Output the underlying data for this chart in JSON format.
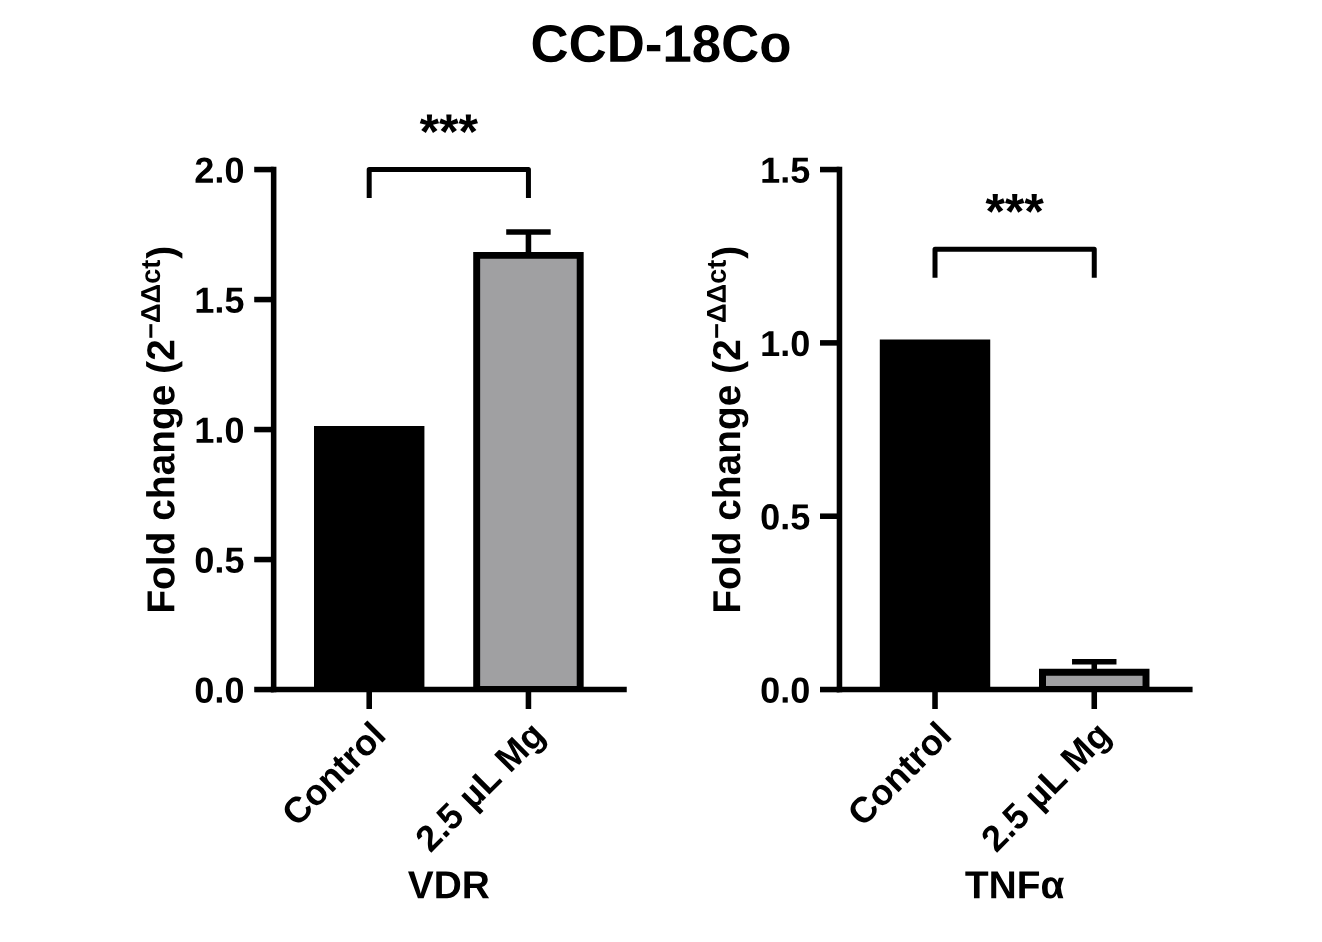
{
  "chart_data": [
    {
      "type": "bar",
      "title": "CCD-18Co",
      "xlabel": "VDR",
      "ylabel": "Fold change (2$^{−ΔΔct}$)",
      "categories": [
        "Control",
        "2.5 µL Mg"
      ],
      "values": [
        1.0,
        1.67
      ],
      "colors": [
        "#000000",
        "#a0a0a2"
      ],
      "errors": [
        null,
        [
          1.67,
          1.76
        ]
      ],
      "ylim": [
        0,
        2.0
      ],
      "yticks": [
        {
          "value": 0,
          "label": "0.0"
        },
        {
          "value": 0.5,
          "label": "0.5"
        },
        {
          "value": 1,
          "label": "1.0"
        },
        {
          "value": 1.5,
          "label": "1.5"
        },
        {
          "value": 2,
          "label": "2.0"
        }
      ],
      "annotations": [
        "***"
      ],
      "grid": false,
      "legend": false
    },
    {
      "type": "bar",
      "xlabel": "TNFα",
      "ylabel": "Fold change (2$^{−ΔΔct}$)",
      "categories": [
        "Control",
        "2.5 µL Mg"
      ],
      "values": [
        1.0,
        0.05
      ],
      "colors": [
        "#000000",
        "#a0a0a2"
      ],
      "errors": [
        null,
        [
          0.05,
          0.08
        ]
      ],
      "ylim": [
        0,
        1.5
      ],
      "yticks": [
        {
          "value": 0,
          "label": "0.0"
        },
        {
          "value": 0.5,
          "label": "0.5"
        },
        {
          "value": 1,
          "label": "1.0"
        },
        {
          "value": 1.5,
          "label": "1.5"
        }
      ],
      "annotations": [
        "***"
      ],
      "grid": false,
      "legend": false
    }
  ]
}
